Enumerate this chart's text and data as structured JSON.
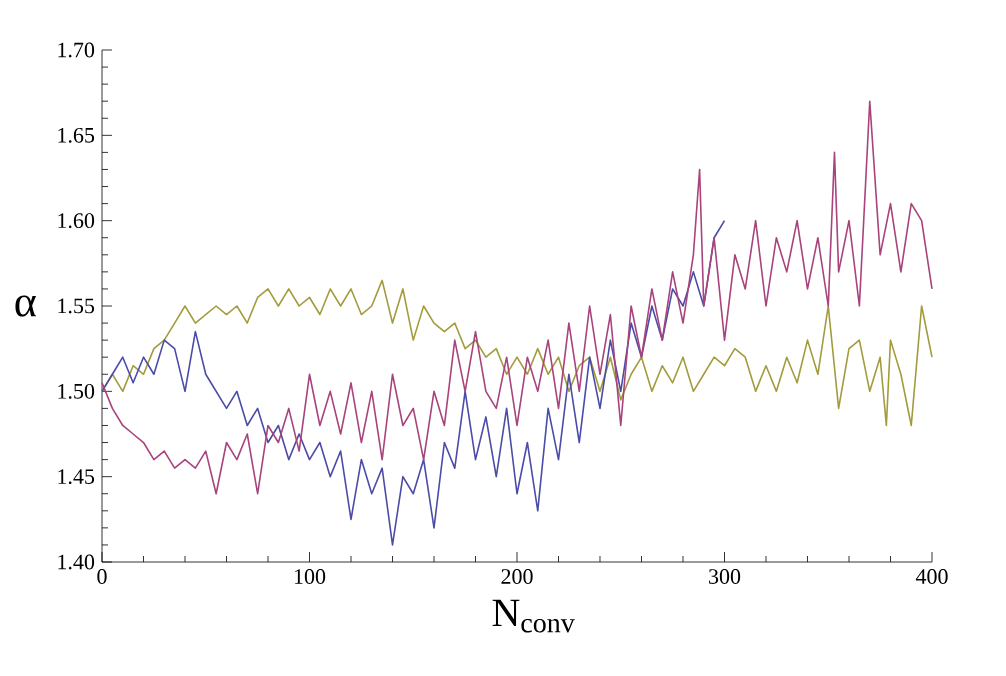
{
  "chart_data": {
    "type": "line",
    "xlabel": "N$_{conv}$",
    "ylabel": "α",
    "xlim": [
      0,
      400
    ],
    "xticks": [
      0,
      100,
      200,
      300,
      400
    ],
    "ylim": [
      1.4,
      1.7
    ],
    "yticks": [
      {
        "value": 1.4,
        "label": "1.40"
      },
      {
        "value": 1.45,
        "label": "1.45"
      },
      {
        "value": 1.5,
        "label": "1.50"
      },
      {
        "value": 1.55,
        "label": "1.55"
      },
      {
        "value": 1.6,
        "label": "1.60"
      },
      {
        "value": 1.65,
        "label": "1.65"
      },
      {
        "value": 1.7,
        "label": "1.70"
      }
    ],
    "grid": false,
    "marker": "none",
    "line_style": "solid",
    "series": [
      {
        "color": "#a39b3c",
        "x": [
          0,
          5,
          10,
          15,
          20,
          25,
          30,
          35,
          40,
          45,
          50,
          55,
          60,
          65,
          70,
          75,
          80,
          85,
          90,
          95,
          100,
          105,
          110,
          115,
          120,
          125,
          130,
          135,
          140,
          145,
          150,
          155,
          160,
          165,
          170,
          175,
          180,
          185,
          190,
          195,
          200,
          205,
          210,
          215,
          220,
          225,
          230,
          235,
          240,
          245,
          250,
          255,
          260,
          265,
          270,
          275,
          280,
          285,
          290,
          295,
          300,
          305,
          310,
          315,
          320,
          325,
          330,
          335,
          340,
          345,
          350,
          355,
          360,
          365,
          370,
          375,
          378,
          380,
          385,
          390,
          395,
          400
        ],
        "values": [
          1.5,
          1.51,
          1.5,
          1.515,
          1.51,
          1.525,
          1.53,
          1.54,
          1.55,
          1.54,
          1.545,
          1.55,
          1.545,
          1.55,
          1.54,
          1.555,
          1.56,
          1.55,
          1.56,
          1.55,
          1.555,
          1.545,
          1.56,
          1.55,
          1.56,
          1.545,
          1.55,
          1.565,
          1.54,
          1.56,
          1.53,
          1.55,
          1.54,
          1.535,
          1.54,
          1.525,
          1.53,
          1.52,
          1.525,
          1.51,
          1.52,
          1.51,
          1.525,
          1.51,
          1.52,
          1.5,
          1.515,
          1.52,
          1.5,
          1.52,
          1.495,
          1.51,
          1.52,
          1.5,
          1.515,
          1.505,
          1.52,
          1.5,
          1.51,
          1.52,
          1.515,
          1.525,
          1.52,
          1.5,
          1.515,
          1.5,
          1.52,
          1.505,
          1.53,
          1.51,
          1.55,
          1.49,
          1.525,
          1.53,
          1.5,
          1.52,
          1.48,
          1.53,
          1.51,
          1.48,
          1.55,
          1.52
        ]
      },
      {
        "color": "#4b4ba8",
        "x": [
          0,
          5,
          10,
          15,
          20,
          25,
          30,
          35,
          40,
          45,
          50,
          55,
          60,
          65,
          70,
          75,
          80,
          85,
          90,
          95,
          100,
          105,
          110,
          115,
          120,
          125,
          130,
          135,
          140,
          145,
          150,
          155,
          160,
          165,
          170,
          175,
          180,
          185,
          190,
          195,
          200,
          205,
          210,
          215,
          220,
          225,
          230,
          235,
          240,
          245,
          250,
          255,
          260,
          265,
          270,
          275,
          280,
          285,
          290,
          295,
          300
        ],
        "values": [
          1.5,
          1.51,
          1.52,
          1.505,
          1.52,
          1.51,
          1.53,
          1.525,
          1.5,
          1.535,
          1.51,
          1.5,
          1.49,
          1.5,
          1.48,
          1.49,
          1.47,
          1.48,
          1.46,
          1.475,
          1.46,
          1.47,
          1.45,
          1.465,
          1.425,
          1.46,
          1.44,
          1.455,
          1.41,
          1.45,
          1.44,
          1.46,
          1.42,
          1.47,
          1.455,
          1.5,
          1.46,
          1.485,
          1.45,
          1.49,
          1.44,
          1.47,
          1.43,
          1.49,
          1.46,
          1.51,
          1.47,
          1.52,
          1.49,
          1.53,
          1.5,
          1.54,
          1.52,
          1.55,
          1.53,
          1.56,
          1.55,
          1.57,
          1.55,
          1.59,
          1.6
        ]
      },
      {
        "color": "#a8437c",
        "x": [
          0,
          5,
          10,
          15,
          20,
          25,
          30,
          35,
          40,
          45,
          50,
          55,
          60,
          65,
          70,
          75,
          80,
          85,
          90,
          95,
          100,
          105,
          110,
          115,
          120,
          125,
          130,
          135,
          140,
          145,
          150,
          155,
          160,
          165,
          170,
          175,
          180,
          185,
          190,
          195,
          200,
          205,
          210,
          215,
          220,
          225,
          230,
          235,
          240,
          245,
          250,
          255,
          260,
          265,
          270,
          275,
          280,
          285,
          288,
          290,
          295,
          300,
          305,
          310,
          315,
          320,
          325,
          330,
          335,
          340,
          345,
          350,
          353,
          355,
          360,
          365,
          370,
          375,
          380,
          385,
          390,
          395,
          400
        ],
        "values": [
          1.505,
          1.49,
          1.48,
          1.475,
          1.47,
          1.46,
          1.465,
          1.455,
          1.46,
          1.455,
          1.465,
          1.44,
          1.47,
          1.46,
          1.475,
          1.44,
          1.48,
          1.47,
          1.49,
          1.465,
          1.51,
          1.48,
          1.5,
          1.475,
          1.505,
          1.47,
          1.5,
          1.46,
          1.51,
          1.48,
          1.49,
          1.46,
          1.5,
          1.48,
          1.53,
          1.5,
          1.535,
          1.5,
          1.49,
          1.52,
          1.48,
          1.52,
          1.5,
          1.53,
          1.49,
          1.54,
          1.5,
          1.55,
          1.51,
          1.545,
          1.48,
          1.55,
          1.52,
          1.56,
          1.53,
          1.57,
          1.54,
          1.58,
          1.63,
          1.55,
          1.59,
          1.53,
          1.58,
          1.56,
          1.6,
          1.55,
          1.59,
          1.57,
          1.6,
          1.56,
          1.59,
          1.55,
          1.64,
          1.57,
          1.6,
          1.55,
          1.67,
          1.58,
          1.61,
          1.57,
          1.61,
          1.6,
          1.56
        ]
      }
    ]
  }
}
